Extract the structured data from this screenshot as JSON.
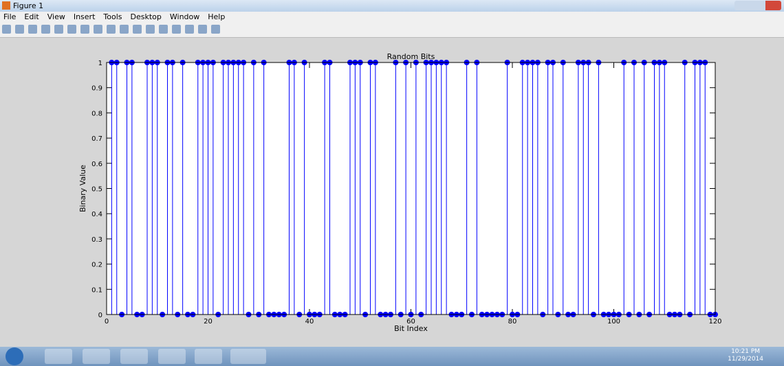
{
  "window": {
    "title": "Figure 1",
    "menu": [
      "File",
      "Edit",
      "View",
      "Insert",
      "Tools",
      "Desktop",
      "Window",
      "Help"
    ]
  },
  "taskbar": {
    "time": "10:21 PM",
    "date": "11/29/2014"
  },
  "chart_data": {
    "type": "stem",
    "title": "Random Bits",
    "xlabel": "Bit Index",
    "ylabel": "Binary Value",
    "color": "#0000ff",
    "x": [
      1,
      2,
      3,
      4,
      5,
      6,
      7,
      8,
      9,
      10,
      11,
      12,
      13,
      14,
      15,
      16,
      17,
      18,
      19,
      20,
      21,
      22,
      23,
      24,
      25,
      26,
      27,
      28,
      29,
      30,
      31,
      32,
      33,
      34,
      35,
      36,
      37,
      38,
      39,
      40,
      41,
      42,
      43,
      44,
      45,
      46,
      47,
      48,
      49,
      50,
      51,
      52,
      53,
      54,
      55,
      56,
      57,
      58,
      59,
      60,
      61,
      62,
      63,
      64,
      65,
      66,
      67,
      68,
      69,
      70,
      71,
      72,
      73,
      74,
      75,
      76,
      77,
      78,
      79,
      80,
      81,
      82,
      83,
      84,
      85,
      86,
      87,
      88,
      89,
      90,
      91,
      92,
      93,
      94,
      95,
      96,
      97,
      98,
      99,
      100,
      101,
      102,
      103,
      104,
      105,
      106,
      107,
      108,
      109,
      110,
      111,
      112,
      113,
      114,
      115,
      116,
      117,
      118,
      119,
      120
    ],
    "values": [
      1,
      1,
      0,
      1,
      1,
      0,
      0,
      1,
      1,
      1,
      0,
      1,
      1,
      0,
      1,
      0,
      0,
      1,
      1,
      1,
      1,
      0,
      1,
      1,
      1,
      1,
      1,
      0,
      1,
      0,
      1,
      0,
      0,
      0,
      0,
      1,
      1,
      0,
      1,
      0,
      0,
      0,
      1,
      1,
      0,
      0,
      0,
      1,
      1,
      1,
      0,
      1,
      1,
      0,
      0,
      0,
      1,
      0,
      1,
      0,
      1,
      0,
      1,
      1,
      1,
      1,
      1,
      0,
      0,
      0,
      1,
      0,
      1,
      0,
      0,
      0,
      0,
      0,
      1,
      0,
      0,
      1,
      1,
      1,
      1,
      0,
      1,
      1,
      0,
      1,
      0,
      0,
      1,
      1,
      1,
      0,
      1,
      0,
      0,
      0,
      0,
      1,
      0,
      1,
      0,
      1,
      0,
      1,
      1,
      1,
      0,
      0,
      0,
      1,
      0,
      1,
      1,
      1,
      0,
      0
    ],
    "xlim": [
      0,
      120
    ],
    "xticks": [
      0,
      20,
      40,
      60,
      80,
      100,
      120
    ],
    "ylim": [
      0,
      1
    ],
    "yticks": [
      0,
      0.1,
      0.2,
      0.3,
      0.4,
      0.5,
      0.6,
      0.7,
      0.8,
      0.9,
      1
    ],
    "grid": false
  }
}
